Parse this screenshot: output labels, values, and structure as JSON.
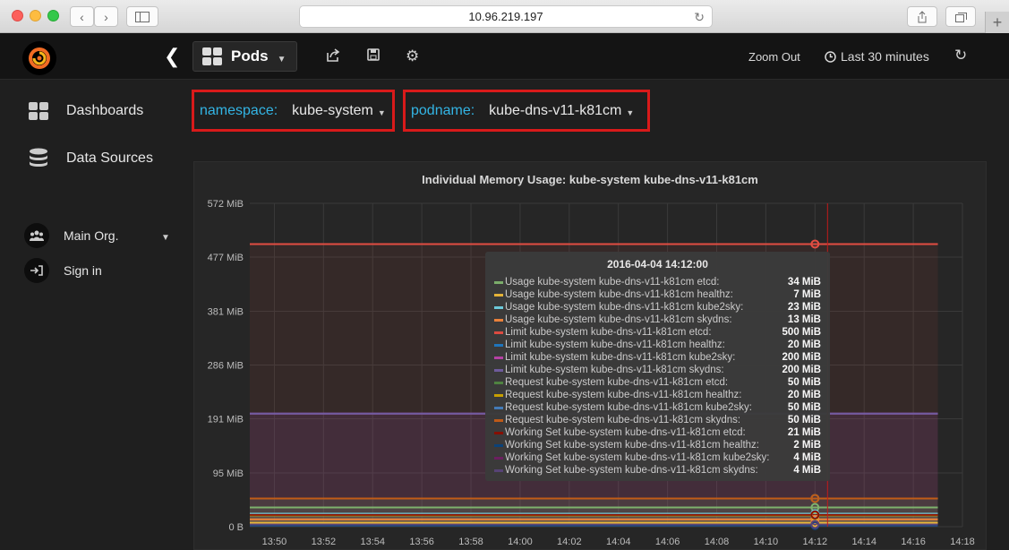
{
  "browser": {
    "url": "10.96.219.197"
  },
  "navbar": {
    "dashboard_title": "Pods",
    "zoom_out": "Zoom Out",
    "time_range": "Last 30 minutes"
  },
  "sidebar": {
    "items": [
      {
        "label": "Dashboards",
        "icon": "grid-icon"
      },
      {
        "label": "Data Sources",
        "icon": "database-icon"
      }
    ],
    "org": {
      "label": "Main Org.",
      "icon": "users-icon"
    },
    "signin": {
      "label": "Sign in",
      "icon": "sign-in-icon"
    }
  },
  "templating": {
    "namespace": {
      "label": "namespace:",
      "value": "kube-system"
    },
    "podname": {
      "label": "podname:",
      "value": "kube-dns-v11-k81cm"
    }
  },
  "panel": {
    "title": "Individual Memory Usage: kube-system kube-dns-v11-k81cm"
  },
  "chart_data": {
    "type": "line",
    "title": "Individual Memory Usage: kube-system kube-dns-v11-k81cm",
    "y_ticks": [
      "572 MiB",
      "477 MiB",
      "381 MiB",
      "286 MiB",
      "191 MiB",
      "95 MiB",
      "0 B"
    ],
    "x_ticks": [
      "13:50",
      "13:52",
      "13:54",
      "13:56",
      "13:58",
      "14:00",
      "14:02",
      "14:04",
      "14:06",
      "14:08",
      "14:10",
      "14:12",
      "14:14",
      "14:16",
      "14:18"
    ],
    "ylim": [
      0,
      572
    ],
    "x_range": [
      "13:49",
      "14:18"
    ],
    "grid": true,
    "fill": true,
    "series": [
      {
        "name": "Usage kube-system kube-dns-v11-k81cm etcd:",
        "color": "#7eb26d",
        "value": 34,
        "unit": "MiB"
      },
      {
        "name": "Usage kube-system kube-dns-v11-k81cm healthz:",
        "color": "#eab839",
        "value": 7,
        "unit": "MiB"
      },
      {
        "name": "Usage kube-system kube-dns-v11-k81cm kube2sky:",
        "color": "#6ed0e0",
        "value": 23,
        "unit": "MiB"
      },
      {
        "name": "Usage kube-system kube-dns-v11-k81cm skydns:",
        "color": "#ef843c",
        "value": 13,
        "unit": "MiB"
      },
      {
        "name": "Limit kube-system kube-dns-v11-k81cm etcd:",
        "color": "#e24d42",
        "value": 500,
        "unit": "MiB"
      },
      {
        "name": "Limit kube-system kube-dns-v11-k81cm healthz:",
        "color": "#1f78c1",
        "value": 20,
        "unit": "MiB"
      },
      {
        "name": "Limit kube-system kube-dns-v11-k81cm kube2sky:",
        "color": "#ba43a9",
        "value": 200,
        "unit": "MiB"
      },
      {
        "name": "Limit kube-system kube-dns-v11-k81cm skydns:",
        "color": "#705da0",
        "value": 200,
        "unit": "MiB"
      },
      {
        "name": "Request kube-system kube-dns-v11-k81cm etcd:",
        "color": "#508642",
        "value": 50,
        "unit": "MiB"
      },
      {
        "name": "Request kube-system kube-dns-v11-k81cm healthz:",
        "color": "#cca300",
        "value": 20,
        "unit": "MiB"
      },
      {
        "name": "Request kube-system kube-dns-v11-k81cm kube2sky:",
        "color": "#447ebc",
        "value": 50,
        "unit": "MiB"
      },
      {
        "name": "Request kube-system kube-dns-v11-k81cm skydns:",
        "color": "#c15c17",
        "value": 50,
        "unit": "MiB"
      },
      {
        "name": "Working Set kube-system kube-dns-v11-k81cm etcd:",
        "color": "#890f02",
        "value": 21,
        "unit": "MiB"
      },
      {
        "name": "Working Set kube-system kube-dns-v11-k81cm healthz:",
        "color": "#0a437c",
        "value": 2,
        "unit": "MiB"
      },
      {
        "name": "Working Set kube-system kube-dns-v11-k81cm kube2sky:",
        "color": "#6d1f62",
        "value": 4,
        "unit": "MiB"
      },
      {
        "name": "Working Set kube-system kube-dns-v11-k81cm skydns:",
        "color": "#584477",
        "value": 4,
        "unit": "MiB"
      }
    ],
    "tooltip": {
      "time": "2016-04-04 14:12:00",
      "x": "14:12"
    }
  }
}
